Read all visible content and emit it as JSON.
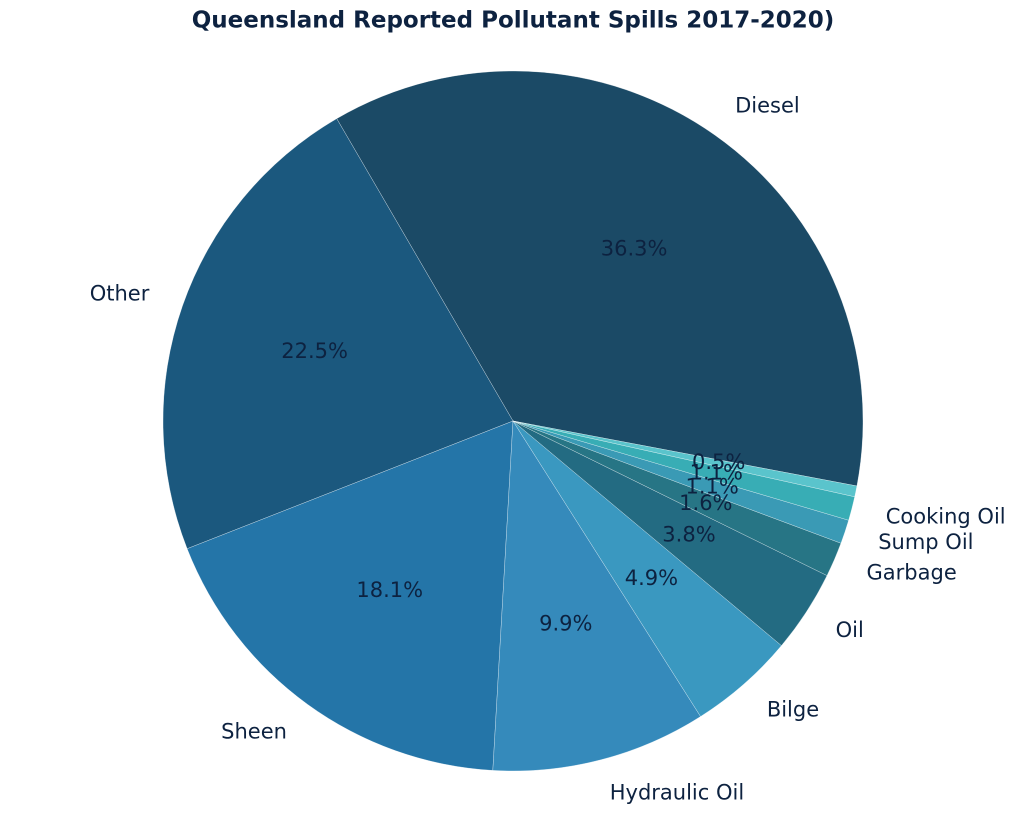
{
  "chart_data": {
    "type": "pie",
    "title": "Queensland Reported Pollutant Spills 2017-2020)",
    "categories": [
      "Diesel",
      "Other",
      "Sheen",
      "Hydraulic Oil",
      "Bilge",
      "Oil",
      "Garbage",
      "Sump Oil",
      "Cooking Oil",
      null
    ],
    "values": [
      36.3,
      22.5,
      18.1,
      9.9,
      4.9,
      3.8,
      1.6,
      1.1,
      1.1,
      0.5
    ],
    "value_labels": [
      "36.3%",
      "22.5%",
      "18.1%",
      "9.9%",
      "4.9%",
      "3.8%",
      "1.6%",
      "1.1%",
      "1.1%",
      "0.5%"
    ],
    "colors": [
      "#1b4a66",
      "#1b587e",
      "#2475a8",
      "#358abb",
      "#3a98c0",
      "#236b82",
      "#277585",
      "#3a9ab5",
      "#38adb5",
      "#5ac4cc"
    ]
  }
}
